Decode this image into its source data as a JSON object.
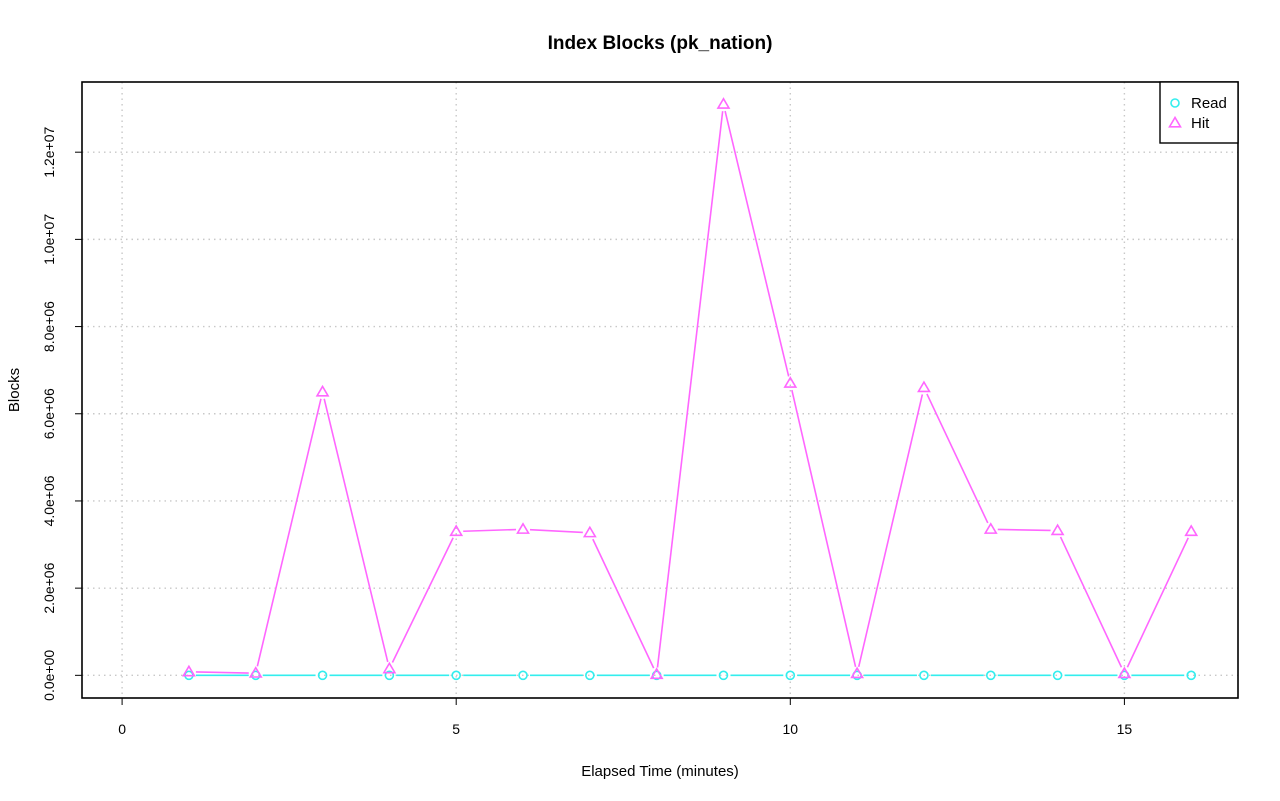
{
  "chart_data": {
    "type": "line",
    "title": "Index Blocks (pk_nation)",
    "xlabel": "Elapsed Time (minutes)",
    "ylabel": "Blocks",
    "xlim": [
      -0.6,
      16.7
    ],
    "ylim": [
      -520000,
      13610000
    ],
    "xticks": [
      0,
      5,
      10,
      15
    ],
    "xtick_labels": [
      "0",
      "5",
      "10",
      "15"
    ],
    "yticks": [
      0,
      2000000,
      4000000,
      6000000,
      8000000,
      10000000,
      12000000
    ],
    "ytick_labels": [
      "0.0e+00",
      "2.0e+06",
      "4.0e+06",
      "6.0e+06",
      "8.0e+06",
      "1.0e+07",
      "1.2e+07"
    ],
    "grid": true,
    "legend_position": "top-right",
    "x": [
      1,
      2,
      3,
      4,
      5,
      6,
      7,
      8,
      9,
      10,
      11,
      12,
      13,
      14,
      15,
      16
    ],
    "series": [
      {
        "name": "Read",
        "color": "#33eeee",
        "marker": "circle",
        "values": [
          0,
          0,
          0,
          0,
          0,
          0,
          0,
          0,
          0,
          0,
          0,
          0,
          0,
          0,
          0,
          0
        ]
      },
      {
        "name": "Hit",
        "color": "#ff66ff",
        "marker": "triangle",
        "values": [
          80000,
          50000,
          6500000,
          150000,
          3300000,
          3350000,
          3270000,
          20000,
          13100000,
          6700000,
          40000,
          6600000,
          3350000,
          3320000,
          40000,
          3300000
        ]
      }
    ]
  }
}
